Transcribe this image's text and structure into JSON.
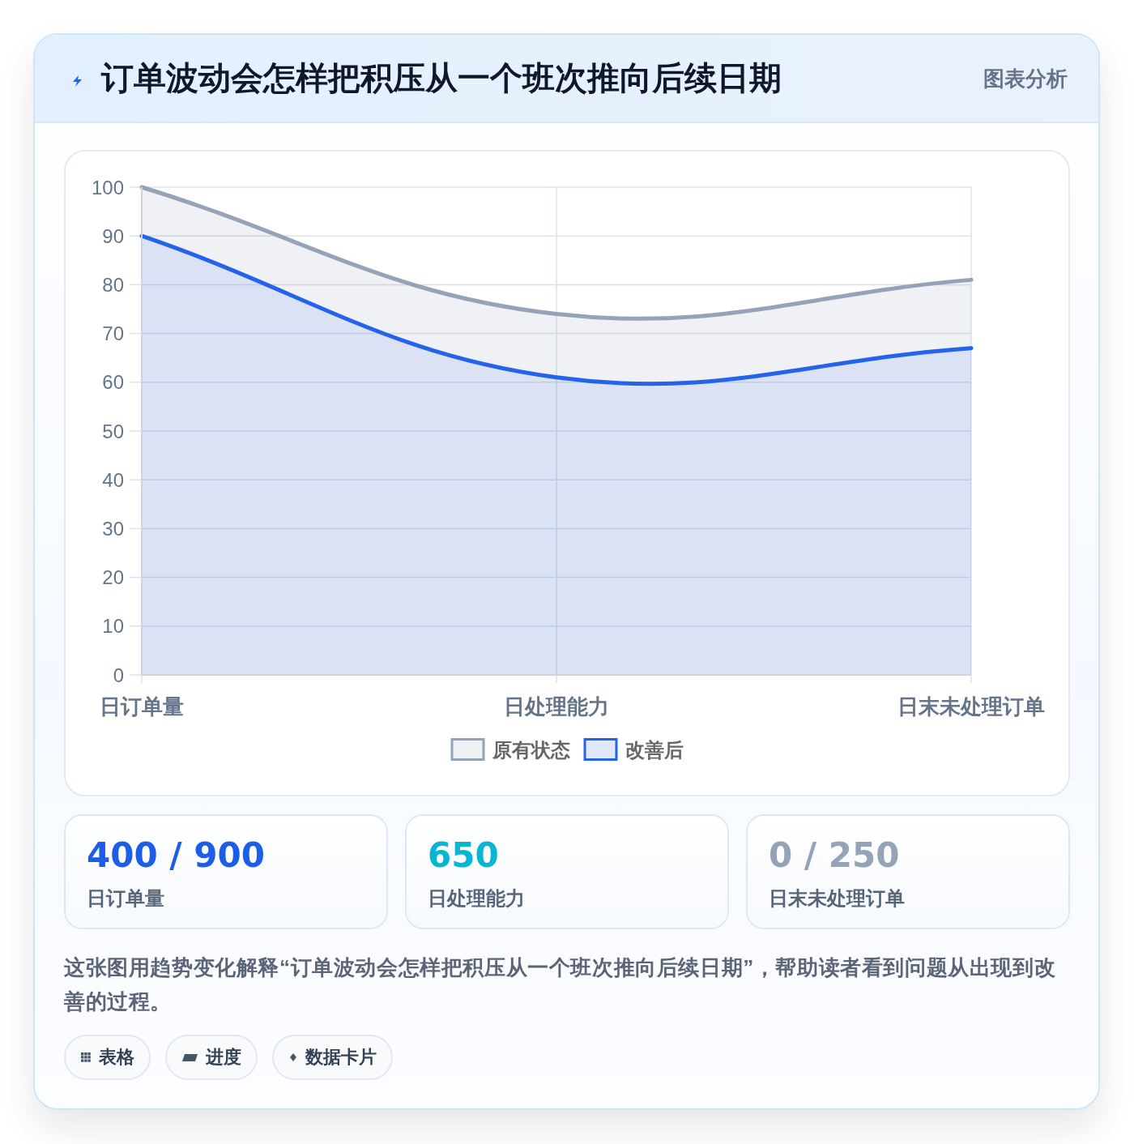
{
  "chart_data": [
    {
      "type": "area",
      "title": "订单波动会怎样把积压从一个班次推向后续日期",
      "annotations": [
        "图表分析"
      ],
      "categories": [
        "日订单量",
        "日处理能力",
        "日末未处理订单"
      ],
      "series": [
        {
          "name": "原有状态",
          "color": "#94a3b8",
          "values": [
            100,
            74,
            81
          ]
        },
        {
          "name": "改善后",
          "color": "#2563eb",
          "values": [
            90,
            61,
            67
          ]
        }
      ],
      "ylim": [
        0,
        100
      ],
      "yticks": [
        0,
        10,
        20,
        30,
        40,
        50,
        60,
        70,
        80,
        90,
        100
      ],
      "grid": true,
      "legend": "bottom"
    },
    {
      "type": "other",
      "categories": [
        "日订单量",
        "日处理能力",
        "日末未处理订单"
      ],
      "value_labels": [
        "400 / 900",
        "650",
        "0 / 250"
      ],
      "annotations": [
        "这张图用趋势变化解释“订单波动会怎样把积压从一个班次推向后续日期”，帮助读者看到问题从出现到改善的过程。",
        "表格",
        "进度",
        "数据卡片"
      ]
    }
  ]
}
